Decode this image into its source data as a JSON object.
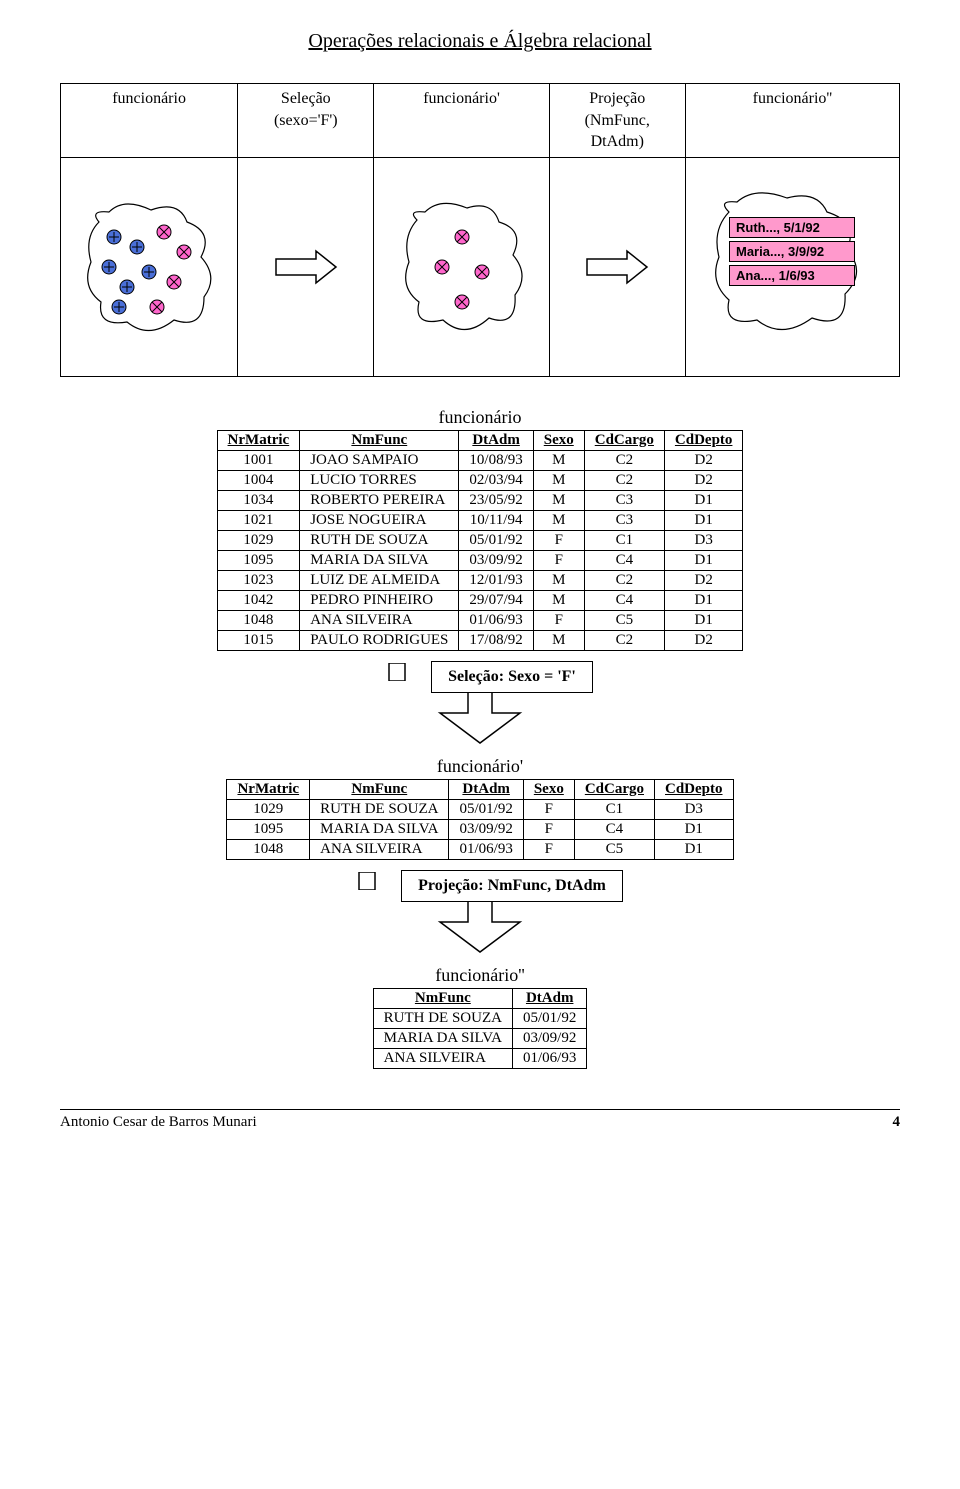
{
  "title": "Operações relacionais e Álgebra relacional",
  "pipeline": {
    "labels": {
      "blob1": "funcionário",
      "op1_l1": "Seleção",
      "op1_l2": "(sexo='F')",
      "blob2": "funcionário'",
      "op2_l1": "Projeção",
      "op2_l2": "(NmFunc,",
      "op2_l3": "DtAdm)",
      "blob3": "funcionário''"
    },
    "results": {
      "r1": "Ruth..., 5/1/92",
      "r2": "Maria..., 3/9/92",
      "r3": "Ana..., 1/6/93"
    },
    "colors": {
      "blob_fill": "#ffffff",
      "blob_stroke": "#000000",
      "circle_blue": "#4a6fd8",
      "circle_pink": "#ff66cc",
      "cross_stroke": "#000000",
      "arrow_stroke": "#000000",
      "pink_box": "#ff99cc"
    }
  },
  "table1": {
    "caption": "funcionário",
    "columns": [
      "NrMatric",
      "NmFunc",
      "DtAdm",
      "Sexo",
      "CdCargo",
      "CdDepto"
    ],
    "rows": [
      [
        "1001",
        "JOAO SAMPAIO",
        "10/08/93",
        "M",
        "C2",
        "D2"
      ],
      [
        "1004",
        "LUCIO TORRES",
        "02/03/94",
        "M",
        "C2",
        "D2"
      ],
      [
        "1034",
        "ROBERTO PEREIRA",
        "23/05/92",
        "M",
        "C3",
        "D1"
      ],
      [
        "1021",
        "JOSE NOGUEIRA",
        "10/11/94",
        "M",
        "C3",
        "D1"
      ],
      [
        "1029",
        "RUTH DE SOUZA",
        "05/01/92",
        "F",
        "C1",
        "D3"
      ],
      [
        "1095",
        "MARIA DA SILVA",
        "03/09/92",
        "F",
        "C4",
        "D1"
      ],
      [
        "1023",
        "LUIZ DE ALMEIDA",
        "12/01/93",
        "M",
        "C2",
        "D2"
      ],
      [
        "1042",
        "PEDRO PINHEIRO",
        "29/07/94",
        "M",
        "C4",
        "D1"
      ],
      [
        "1048",
        "ANA SILVEIRA",
        "01/06/93",
        "F",
        "C5",
        "D1"
      ],
      [
        "1015",
        "PAULO RODRIGUES",
        "17/08/92",
        "M",
        "C2",
        "D2"
      ]
    ]
  },
  "step1_label": "Seleção: Sexo = 'F'",
  "table2": {
    "caption": "funcionário'",
    "columns": [
      "NrMatric",
      "NmFunc",
      "DtAdm",
      "Sexo",
      "CdCargo",
      "CdDepto"
    ],
    "rows": [
      [
        "1029",
        "RUTH DE SOUZA",
        "05/01/92",
        "F",
        "C1",
        "D3"
      ],
      [
        "1095",
        "MARIA DA SILVA",
        "03/09/92",
        "F",
        "C4",
        "D1"
      ],
      [
        "1048",
        "ANA SILVEIRA",
        "01/06/93",
        "F",
        "C5",
        "D1"
      ]
    ]
  },
  "step2_label": "Projeção: NmFunc, DtAdm",
  "table3": {
    "caption": "funcionário''",
    "columns": [
      "NmFunc",
      "DtAdm"
    ],
    "rows": [
      [
        "RUTH DE SOUZA",
        "05/01/92"
      ],
      [
        "MARIA DA SILVA",
        "03/09/92"
      ],
      [
        "ANA SILVEIRA",
        "01/06/93"
      ]
    ]
  },
  "footer": {
    "author": "Antonio Cesar de Barros Munari",
    "page": "4"
  }
}
